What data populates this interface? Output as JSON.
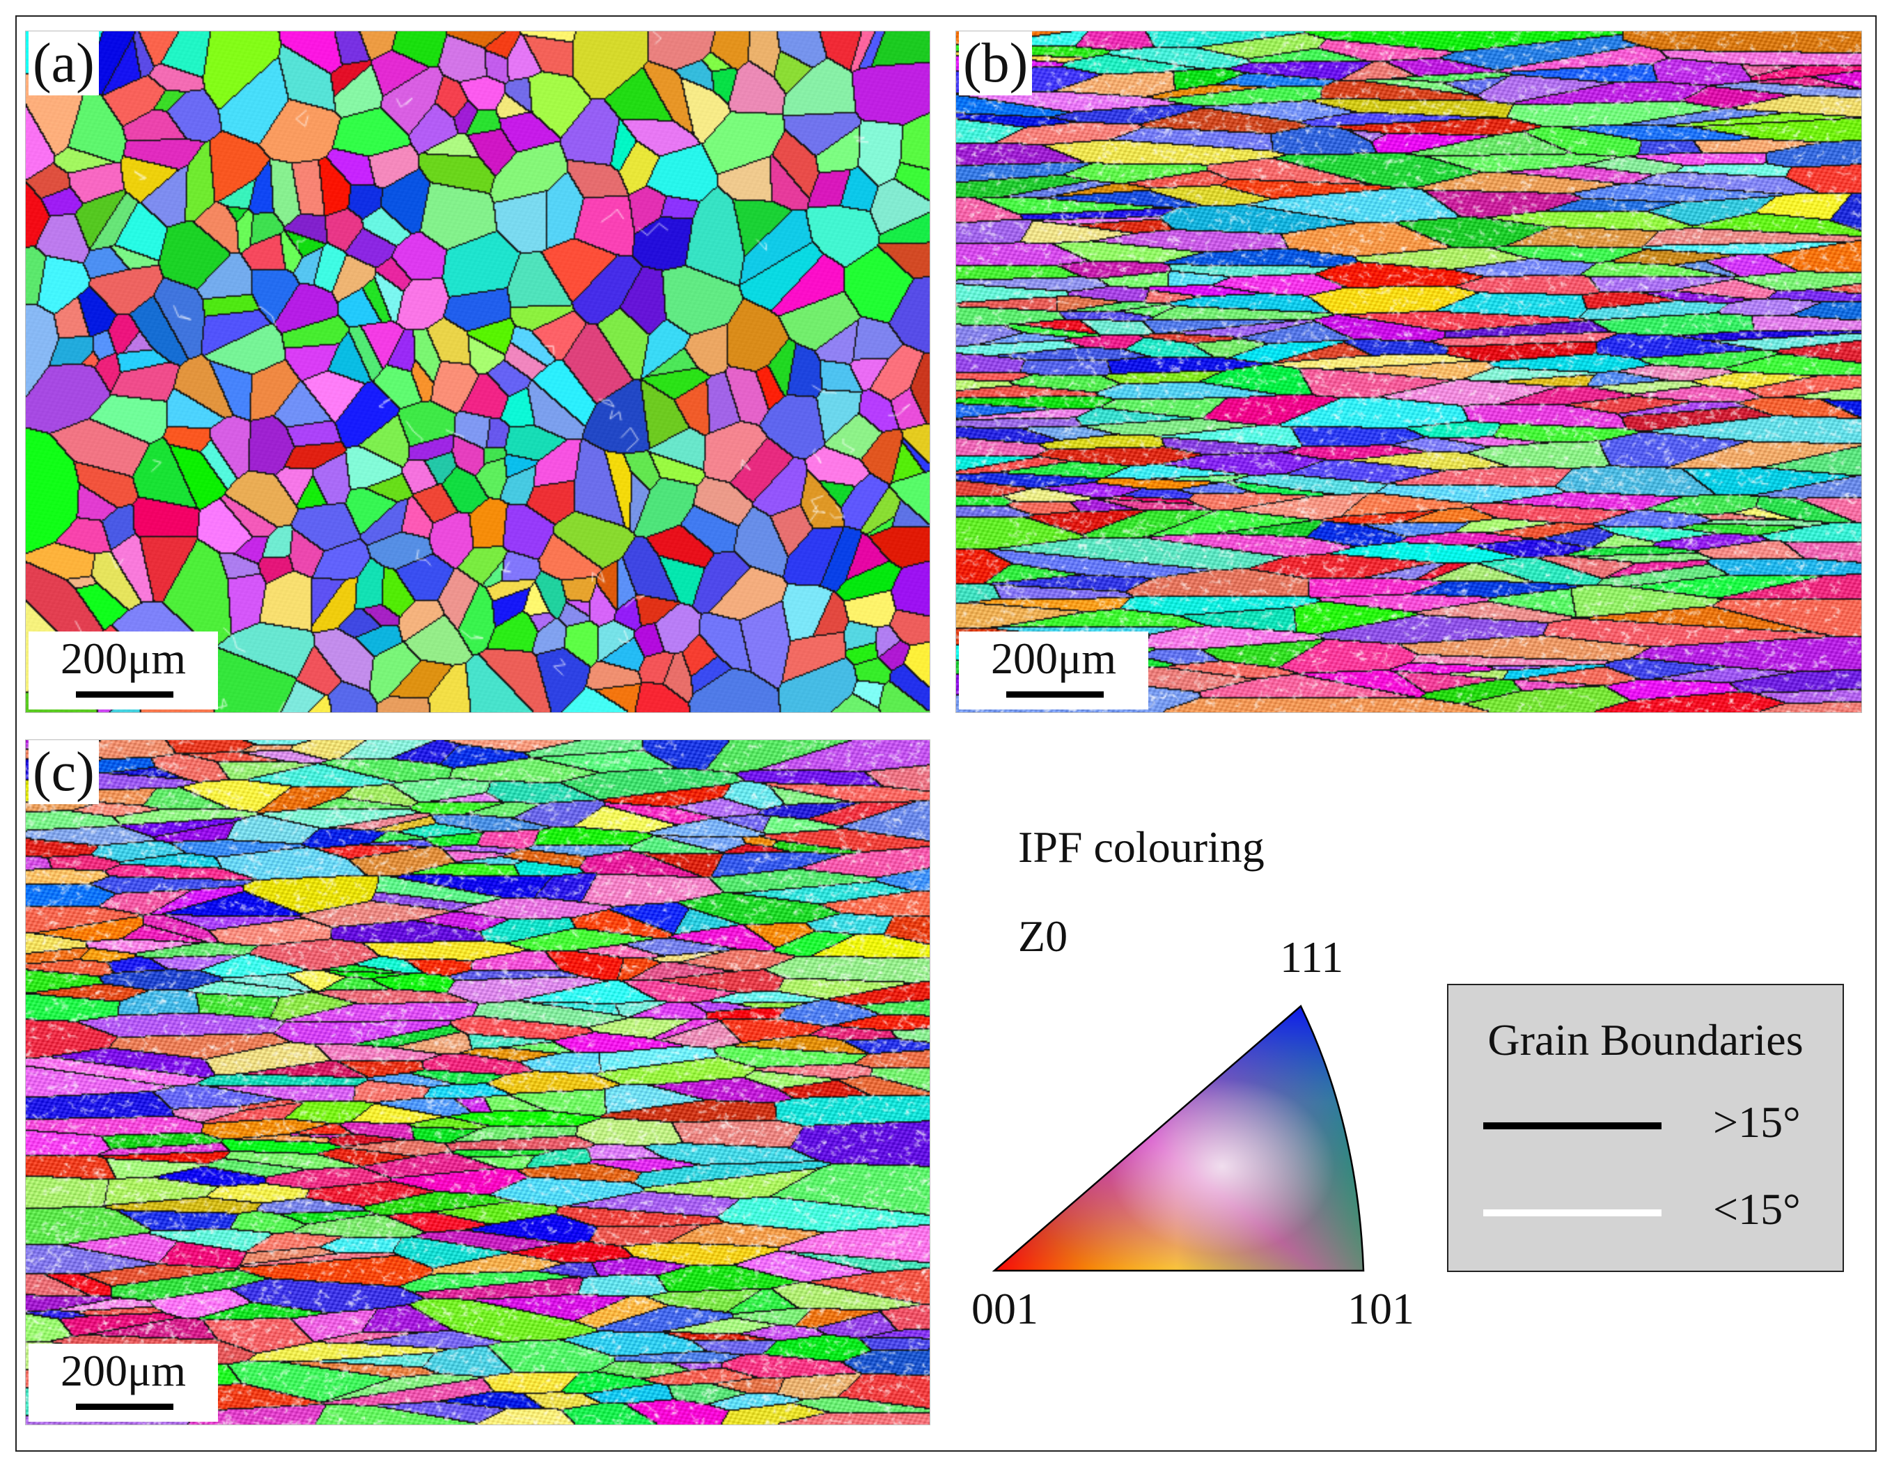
{
  "panels": [
    {
      "id": "a",
      "label": "(a)",
      "scale_label": "200μm",
      "structure": "equiaxed grains"
    },
    {
      "id": "b",
      "label": "(b)",
      "scale_label": "200μm",
      "structure": "elongated deformed grains"
    },
    {
      "id": "c",
      "label": "(c)",
      "scale_label": "200μm",
      "structure": "elongated deformed grains"
    }
  ],
  "ipf_legend": {
    "title": "IPF colouring",
    "direction": "Z0",
    "vertex_001": "001",
    "vertex_101": "101",
    "vertex_111": "111",
    "colors": {
      "001": "#ff0000",
      "101": "#00ff00",
      "111": "#0000ff"
    }
  },
  "grain_boundaries": {
    "title": "Grain Boundaries",
    "high_angle": {
      "label": ">15°",
      "color": "#000000"
    },
    "low_angle": {
      "label": "<15°",
      "color": "#ffffff"
    },
    "box_color": "#d3d3d3"
  }
}
